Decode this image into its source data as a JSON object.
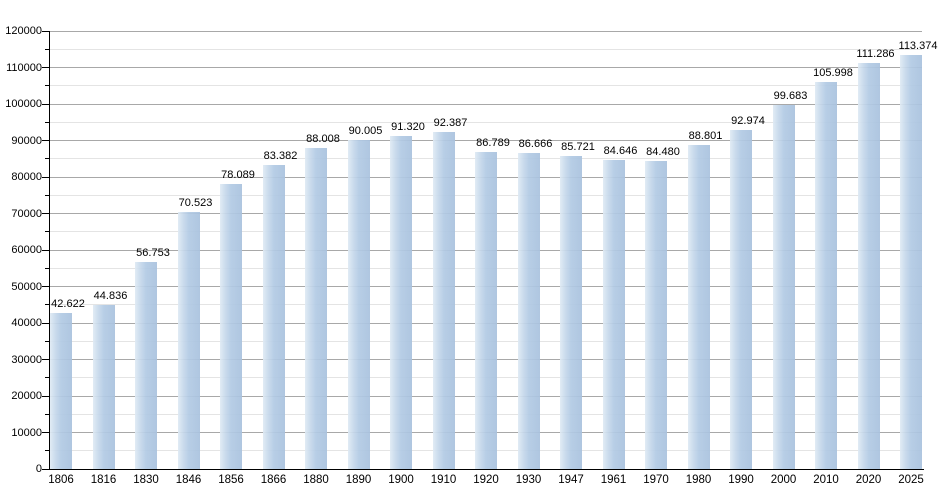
{
  "chart_data": {
    "type": "bar",
    "title": "",
    "xlabel": "",
    "ylabel": "",
    "categories": [
      "1806",
      "1816",
      "1830",
      "1846",
      "1856",
      "1866",
      "1880",
      "1890",
      "1900",
      "1910",
      "1920",
      "1930",
      "1947",
      "1961",
      "1970",
      "1980",
      "1990",
      "2000",
      "2010",
      "2020",
      "2025"
    ],
    "values": [
      42622,
      44836,
      56753,
      70523,
      78089,
      83382,
      88008,
      90005,
      91320,
      92387,
      86789,
      86666,
      85721,
      84646,
      84480,
      88801,
      92974,
      99683,
      105998,
      111286,
      113374
    ],
    "value_labels": [
      "42.622",
      "44.836",
      "56.753",
      "70.523",
      "78.089",
      "83.382",
      "88.008",
      "90.005",
      "91.320",
      "92.387",
      "86.789",
      "86.666",
      "85.721",
      "84.646",
      "84.480",
      "88.801",
      "92.974",
      "99.683",
      "105.998",
      "111.286",
      "113.374"
    ],
    "ylim": [
      0,
      120000
    ],
    "y_major_step": 10000,
    "y_minor_step": 5000,
    "y_tick_labels": [
      "0",
      "10000",
      "20000",
      "30000",
      "40000",
      "50000",
      "60000",
      "70000",
      "80000",
      "90000",
      "100000",
      "110000",
      "120000"
    ],
    "grid": "horizontal-major-and-minor",
    "legend": "none",
    "colors": {
      "bar_fill": "#b2cae4",
      "bar_fill_light": "#dfeaf4",
      "bar_fill_edge": "#a9c2de",
      "major_gridline": "#a8a8a8",
      "minor_gridline": "#e4e4e4",
      "axis": "#000000",
      "label_text": "#000000",
      "background": "#ffffff"
    }
  }
}
